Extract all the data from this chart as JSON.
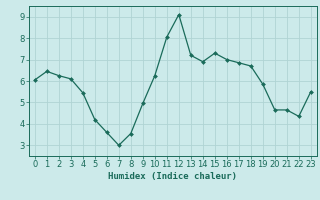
{
  "x": [
    0,
    1,
    2,
    3,
    4,
    5,
    6,
    7,
    8,
    9,
    10,
    11,
    12,
    13,
    14,
    15,
    16,
    17,
    18,
    19,
    20,
    21,
    22,
    23
  ],
  "y": [
    6.05,
    6.45,
    6.25,
    6.1,
    5.45,
    4.2,
    3.6,
    3.0,
    3.55,
    4.95,
    6.25,
    8.05,
    9.1,
    7.2,
    6.9,
    7.3,
    7.0,
    6.85,
    6.7,
    5.85,
    4.65,
    4.65,
    4.35,
    5.5
  ],
  "line_color": "#1a6b5a",
  "marker": "D",
  "marker_size": 2.0,
  "background_color": "#cceaea",
  "grid_color": "#b0d4d4",
  "xlabel": "Humidex (Indice chaleur)",
  "ylim": [
    2.5,
    9.5
  ],
  "xlim": [
    -0.5,
    23.5
  ],
  "yticks": [
    3,
    4,
    5,
    6,
    7,
    8,
    9
  ],
  "xticks": [
    0,
    1,
    2,
    3,
    4,
    5,
    6,
    7,
    8,
    9,
    10,
    11,
    12,
    13,
    14,
    15,
    16,
    17,
    18,
    19,
    20,
    21,
    22,
    23
  ],
  "tick_color": "#1a6b5a",
  "label_fontsize": 6.5,
  "tick_fontsize": 6.0,
  "spine_color": "#1a6b5a"
}
